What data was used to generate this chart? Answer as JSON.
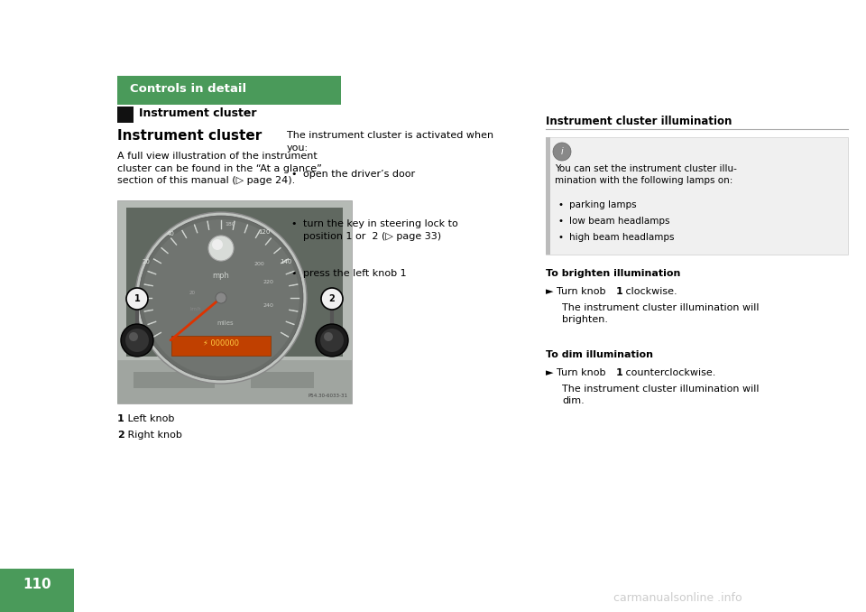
{
  "bg_color": "#ffffff",
  "page_number": "110",
  "page_num_bg": "#4a9a5a",
  "header_bg": "#4a9a5a",
  "header_text": "Controls in detail",
  "header_text_color": "#ffffff",
  "section_tag_bg": "#111111",
  "section_tag_text": "Instrument cluster",
  "title": "Instrument cluster",
  "col1_intro": "A full view illustration of the instrument\ncluster can be found in the “At a glance”\nsection of this manual (▷ page 24).",
  "label1_bold": "1",
  "label1_normal": " Left knob",
  "label2_bold": "2",
  "label2_normal": " Right knob",
  "col2_intro": "The instrument cluster is activated when\nyou:",
  "col2_b1": "open the driver’s door",
  "col2_b2a": "turn the key in steering lock to\nposition ",
  "col2_b2b": "1",
  "col2_b2c": " or  ",
  "col2_b2d": "2",
  "col2_b2e": " (▷ page 33)",
  "col2_b3a": "press the left knob ",
  "col2_b3b": "1",
  "col3_title": "Instrument cluster illumination",
  "col3_info": "You can set the instrument cluster illu-\nmination with the following lamps on:",
  "col3_b1": "parking lamps",
  "col3_b2": "low beam headlamps",
  "col3_b3": "high beam headlamps",
  "col3_h1": "To brighten illumination",
  "col3_arrow1a": "► Turn knob ",
  "col3_arrow1b": "1",
  "col3_arrow1c": " clockwise.",
  "col3_detail1": "The instrument cluster illumination will\nbrighten.",
  "col3_h2": "To dim illumination",
  "col3_arrow2a": "► Turn knob ",
  "col3_arrow2b": "1",
  "col3_arrow2c": " counterclockwise.",
  "col3_detail2": "The instrument cluster illumination will\ndim.",
  "watermark": "carmanualsonline .info",
  "green": "#4a9a5a",
  "gray_line": "#aaaaaa",
  "black": "#000000",
  "white": "#ffffff",
  "img_bg": "#b8bdb8",
  "gauge_dark": "#606860",
  "gauge_mid": "#787878",
  "gauge_light": "#c8cac8",
  "knob_dark": "#282828",
  "knob_mid": "#444444",
  "needle_color": "#dd3300",
  "odo_bg": "#c04000",
  "odo_text": "#ffcc44"
}
